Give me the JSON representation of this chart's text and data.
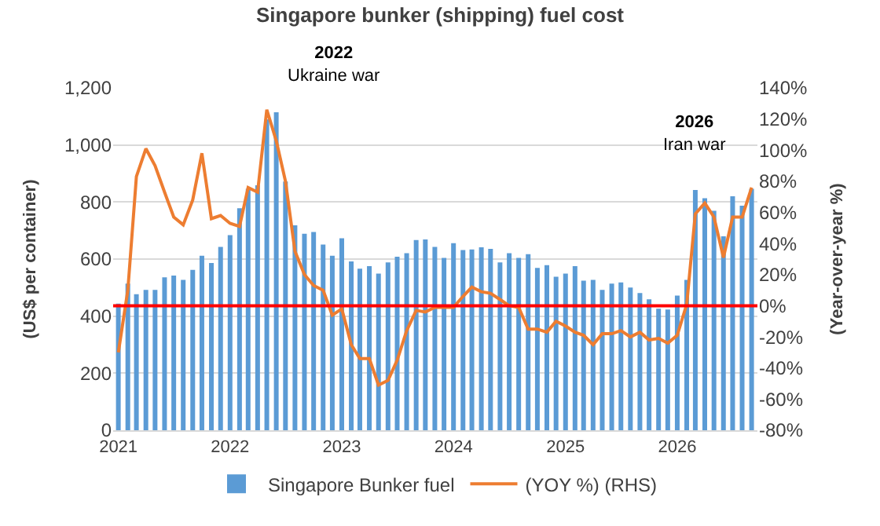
{
  "chart_data": {
    "type": "bar",
    "title": "Singapore bunker (shipping) fuel cost",
    "ylabel": "(US$ per container)",
    "y2label": "(Year-over-year %)",
    "x": [
      "2021-01",
      "2021-02",
      "2021-03",
      "2021-04",
      "2021-05",
      "2021-06",
      "2021-07",
      "2021-08",
      "2021-09",
      "2021-10",
      "2021-11",
      "2021-12",
      "2022-01",
      "2022-02",
      "2022-03",
      "2022-04",
      "2022-05",
      "2022-06",
      "2022-07",
      "2022-08",
      "2022-09",
      "2022-10",
      "2022-11",
      "2022-12",
      "2023-01",
      "2023-02",
      "2023-03",
      "2023-04",
      "2023-05",
      "2023-06",
      "2023-07",
      "2023-08",
      "2023-09",
      "2023-10",
      "2023-11",
      "2023-12",
      "2024-01",
      "2024-02",
      "2024-03",
      "2024-04",
      "2024-05",
      "2024-06",
      "2024-07",
      "2024-08",
      "2024-09",
      "2024-10",
      "2024-11",
      "2024-12",
      "2025-01",
      "2025-02",
      "2025-03",
      "2025-04",
      "2025-05",
      "2025-06",
      "2025-07",
      "2025-08",
      "2025-09",
      "2025-10",
      "2025-11",
      "2025-12",
      "2026-01",
      "2026-02",
      "2026-03",
      "2026-04",
      "2026-05",
      "2026-06",
      "2026-07",
      "2026-08",
      "2026-09"
    ],
    "series": [
      {
        "name": "Singapore Bunker fuel",
        "color": "#5b9bd5",
        "values": [
          444,
          514,
          477,
          492,
          492,
          536,
          542,
          527,
          562,
          612,
          586,
          643,
          684,
          778,
          846,
          859,
          1090,
          1115,
          872,
          718,
          689,
          695,
          651,
          612,
          673,
          592,
          566,
          575,
          549,
          588,
          608,
          621,
          667,
          669,
          643,
          604,
          656,
          632,
          634,
          641,
          636,
          588,
          621,
          604,
          617,
          569,
          579,
          538,
          549,
          575,
          524,
          527,
          492,
          514,
          518,
          500,
          481,
          459,
          426,
          423,
          472,
          527,
          842,
          813,
          769,
          680,
          820,
          787,
          846
        ]
      },
      {
        "name": "(YOY %) (RHS)",
        "type": "line",
        "axis": "y2",
        "color": "#ed7d31",
        "values": [
          -30,
          10,
          83,
          101,
          90,
          73,
          57,
          52,
          68,
          98,
          56,
          58,
          53,
          51,
          76,
          73,
          126,
          106,
          80,
          35,
          20,
          13,
          10,
          -6,
          -2,
          -25,
          -34,
          -34,
          -51,
          -48,
          -35,
          -16,
          -3,
          -4,
          -1,
          -1,
          -1,
          6,
          12,
          9,
          8,
          4,
          0,
          -1,
          -15,
          -15,
          -17,
          -10,
          -13,
          -17,
          -19,
          -25,
          -18,
          -18,
          -16,
          -20,
          -17,
          -22,
          -21,
          -24,
          -19,
          1,
          59,
          66,
          57,
          31,
          57,
          57,
          76
        ]
      }
    ],
    "xlim": [
      "2020-12-15",
      "2026-09-20"
    ],
    "xticks": [
      {
        "value": "2021-01-01",
        "label": "2021"
      },
      {
        "value": "2022-01-01",
        "label": "2022"
      },
      {
        "value": "2023-01-01",
        "label": "2023"
      },
      {
        "value": "2024-01-01",
        "label": "2024"
      },
      {
        "value": "2025-01-01",
        "label": "2025"
      },
      {
        "value": "2026-01-01",
        "label": "2026"
      }
    ],
    "ylim": [
      0,
      1200
    ],
    "yticks": [
      0,
      200,
      400,
      600,
      800,
      {
        "value": 1000,
        "label": "1,000"
      },
      {
        "value": 1200,
        "label": "1,200"
      }
    ],
    "y2lim": [
      -80,
      140
    ],
    "y2ticks": [
      {
        "value": -80,
        "label": "-80%"
      },
      {
        "value": -60,
        "label": "-60%"
      },
      {
        "value": -40,
        "label": "-40%"
      },
      {
        "value": -20,
        "label": "-20%"
      },
      {
        "value": 0,
        "label": "0%"
      },
      {
        "value": 20,
        "label": "20%"
      },
      {
        "value": 40,
        "label": "40%"
      },
      {
        "value": 60,
        "label": "60%"
      },
      {
        "value": 80,
        "label": "80%"
      },
      {
        "value": 100,
        "label": "100%"
      },
      {
        "value": 120,
        "label": "120%"
      },
      {
        "value": 140,
        "label": "140%"
      }
    ],
    "ref_lines": [
      {
        "axis": "y2",
        "value": 0,
        "color": "#ff0000"
      }
    ],
    "annotations": [
      "2022\nUkraine war",
      "2026\nIran war"
    ],
    "grid": "y",
    "legend": "bottom",
    "line_style": "solid",
    "marker": "none"
  }
}
